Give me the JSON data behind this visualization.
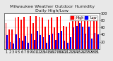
{
  "title": "Milwaukee Weather Outdoor Humidity",
  "subtitle": "Daily High/Low",
  "ylim": [
    0,
    100
  ],
  "background_color": "#e8e8e8",
  "plot_bg_color": "#ffffff",
  "bar_color_high": "#ff0000",
  "bar_color_low": "#0000ff",
  "grid_color": "#cccccc",
  "days": [
    1,
    2,
    3,
    4,
    5,
    6,
    7,
    8,
    9,
    10,
    11,
    12,
    13,
    14,
    15,
    16,
    17,
    18,
    19,
    20,
    21,
    22,
    23,
    24,
    25,
    26,
    27,
    28,
    29,
    30,
    31
  ],
  "highs": [
    72,
    55,
    55,
    88,
    90,
    82,
    90,
    62,
    93,
    72,
    92,
    90,
    88,
    62,
    82,
    88,
    60,
    90,
    92,
    64,
    62,
    75,
    80,
    90,
    93,
    92,
    88,
    92,
    78,
    88,
    80
  ],
  "lows": [
    38,
    20,
    15,
    40,
    30,
    22,
    36,
    18,
    42,
    25,
    50,
    38,
    32,
    18,
    38,
    42,
    25,
    45,
    50,
    22,
    18,
    32,
    60,
    65,
    72,
    62,
    42,
    62,
    28,
    45,
    40
  ],
  "tick_fontsize": 3.5,
  "title_fontsize": 4.5,
  "legend_fontsize": 3.5,
  "bar_width": 0.4
}
